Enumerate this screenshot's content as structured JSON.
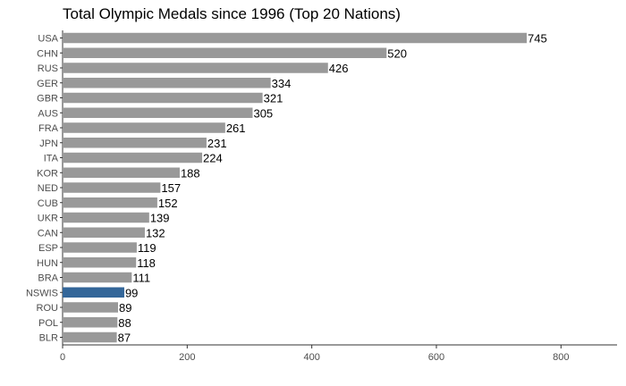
{
  "chart_data": {
    "type": "bar",
    "orientation": "horizontal",
    "title": "Total Olympic Medals since 1996 (Top 20 Nations)",
    "xlabel": "",
    "ylabel": "",
    "categories": [
      "USA",
      "CHN",
      "RUS",
      "GER",
      "GBR",
      "AUS",
      "FRA",
      "JPN",
      "ITA",
      "KOR",
      "NED",
      "CUB",
      "UKR",
      "CAN",
      "ESP",
      "HUN",
      "BRA",
      "NSWIS",
      "ROU",
      "POL",
      "BLR"
    ],
    "values": [
      745,
      520,
      426,
      334,
      321,
      305,
      261,
      231,
      224,
      188,
      157,
      152,
      139,
      132,
      119,
      118,
      111,
      99,
      89,
      88,
      87
    ],
    "highlight": "NSWIS",
    "colors": {
      "bar": "#999999",
      "highlight": "#336699"
    },
    "xlim": [
      0,
      890
    ],
    "xticks": [
      0,
      200,
      400,
      600,
      800
    ],
    "grid": false,
    "legend": "none"
  }
}
